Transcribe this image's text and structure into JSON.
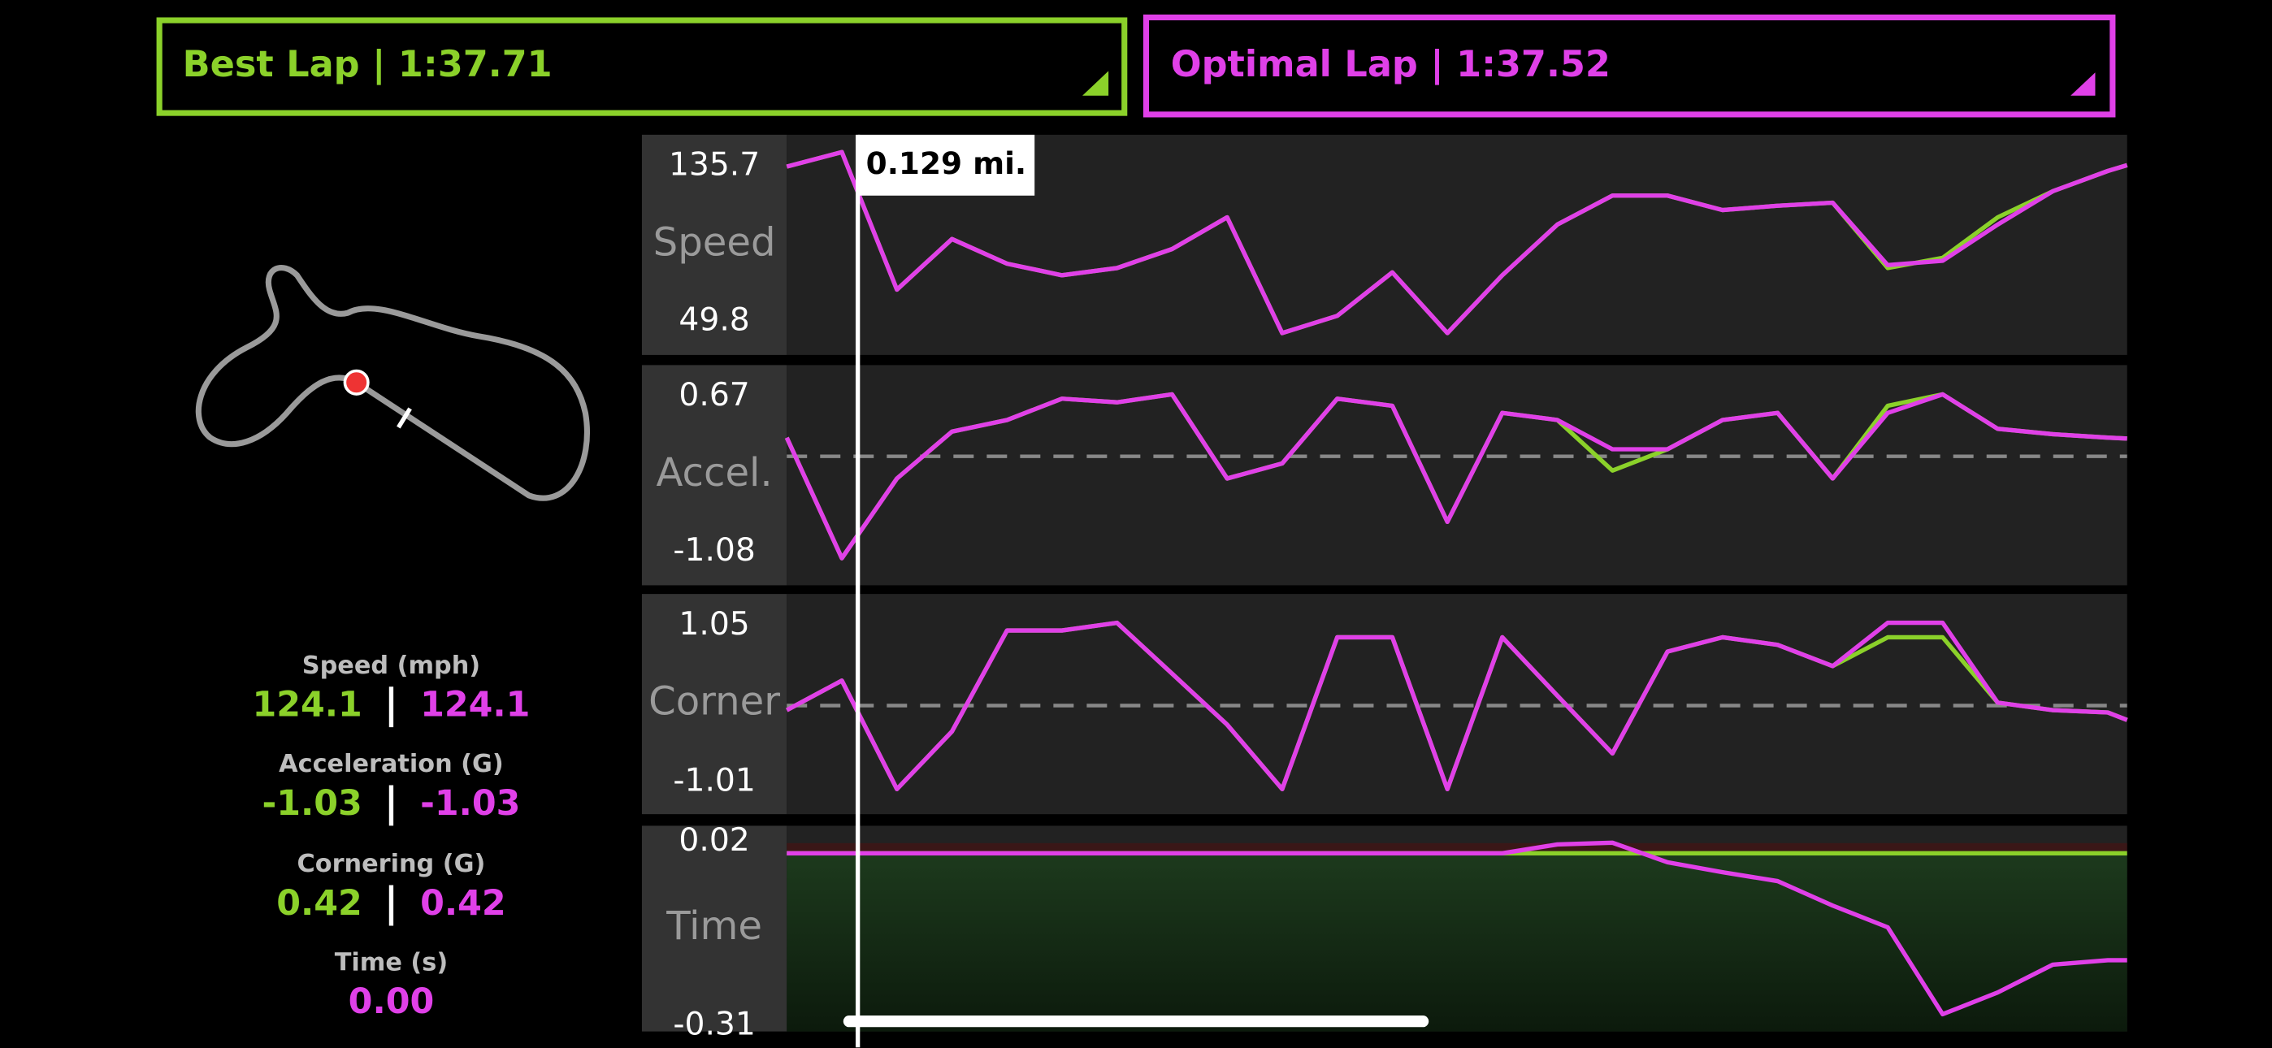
{
  "header": {
    "best_lap": "Best Lap | 1:37.71",
    "optimal_lap": "Optimal Lap | 1:37.52"
  },
  "stats": [
    {
      "label": "Speed (mph)",
      "best": "124.1",
      "optimal": "124.1"
    },
    {
      "label": "Acceleration (G)",
      "best": "-1.03",
      "optimal": "-1.03"
    },
    {
      "label": "Cornering (G)",
      "best": "0.42",
      "optimal": "0.42"
    },
    {
      "label": "Time (s)",
      "optimal": "0.00"
    }
  ],
  "cursor": {
    "value": 0.129,
    "label": "0.129 mi."
  },
  "chart_data": [
    {
      "type": "line",
      "ylabel": "Speed",
      "xlim": [
        0,
        2.435
      ],
      "ylim": [
        31.3,
        153.4
      ],
      "yticks": [
        49.8,
        135.7
      ],
      "zero_line": false,
      "x": [
        0,
        0.1,
        0.2,
        0.3,
        0.4,
        0.5,
        0.6,
        0.7,
        0.8,
        0.9,
        1.0,
        1.1,
        1.2,
        1.3,
        1.4,
        1.5,
        1.6,
        1.7,
        1.8,
        1.9,
        2.0,
        2.1,
        2.2,
        2.3,
        2.4,
        2.435
      ],
      "series": [
        {
          "color": "#8bd12a",
          "values": [
            135.7,
            143.8,
            67.5,
            95.6,
            81.9,
            75.5,
            79.5,
            90.0,
            107.6,
            43.4,
            53.0,
            77.1,
            43.4,
            75.5,
            103.6,
            119.7,
            119.7,
            111.6,
            114.0,
            115.7,
            79.5,
            85.1,
            107.6,
            122.1,
            133.3,
            136.5
          ]
        },
        {
          "color": "#e040e8",
          "values": [
            135.7,
            143.8,
            67.5,
            95.6,
            81.9,
            75.5,
            79.5,
            90.0,
            107.6,
            43.4,
            53.0,
            77.1,
            43.4,
            75.5,
            103.6,
            119.7,
            119.7,
            111.6,
            114.0,
            115.7,
            81.1,
            83.5,
            103.6,
            122.1,
            133.3,
            136.5
          ]
        }
      ]
    },
    {
      "type": "line",
      "ylabel": "Accel.",
      "xlim": [
        0,
        2.435
      ],
      "ylim": [
        -1.456,
        1.03
      ],
      "yticks": [
        -1.08,
        0.67
      ],
      "zero_line": true,
      "x": [
        0,
        0.1,
        0.2,
        0.3,
        0.4,
        0.5,
        0.6,
        0.7,
        0.8,
        0.9,
        1.0,
        1.1,
        1.2,
        1.3,
        1.4,
        1.5,
        1.6,
        1.7,
        1.8,
        1.9,
        2.0,
        2.1,
        2.2,
        2.3,
        2.4,
        2.435
      ],
      "series": [
        {
          "color": "#8bd12a",
          "values": [
            0.21,
            -1.15,
            -0.25,
            0.28,
            0.41,
            0.65,
            0.61,
            0.7,
            -0.25,
            -0.08,
            0.65,
            0.57,
            -0.74,
            0.49,
            0.41,
            -0.16,
            0.08,
            0.41,
            0.49,
            -0.25,
            0.57,
            0.7,
            0.31,
            0.25,
            0.21,
            0.2
          ]
        },
        {
          "color": "#e040e8",
          "values": [
            0.21,
            -1.15,
            -0.25,
            0.28,
            0.41,
            0.65,
            0.61,
            0.7,
            -0.25,
            -0.08,
            0.65,
            0.57,
            -0.74,
            0.49,
            0.41,
            0.08,
            0.08,
            0.41,
            0.49,
            -0.25,
            0.49,
            0.7,
            0.31,
            0.25,
            0.21,
            0.2
          ]
        }
      ]
    },
    {
      "type": "line",
      "ylabel": "Corner",
      "xlim": [
        0,
        2.435
      ],
      "ylim": [
        -1.43,
        1.47
      ],
      "yticks": [
        -1.01,
        1.05
      ],
      "zero_line": true,
      "x": [
        0,
        0.1,
        0.2,
        0.3,
        0.4,
        0.5,
        0.6,
        0.7,
        0.8,
        0.9,
        1.0,
        1.1,
        1.2,
        1.3,
        1.4,
        1.5,
        1.6,
        1.7,
        1.8,
        1.9,
        2.0,
        2.1,
        2.2,
        2.3,
        2.4,
        2.435
      ],
      "series": [
        {
          "color": "#8bd12a",
          "values": [
            -0.06,
            0.33,
            -1.1,
            -0.34,
            0.99,
            0.99,
            1.09,
            0.42,
            -0.25,
            -1.1,
            0.9,
            0.9,
            -1.1,
            0.9,
            0.13,
            -0.63,
            0.71,
            0.9,
            0.8,
            0.52,
            0.9,
            0.9,
            0.04,
            -0.06,
            -0.09,
            -0.19
          ]
        },
        {
          "color": "#e040e8",
          "values": [
            -0.06,
            0.33,
            -1.1,
            -0.34,
            0.99,
            0.99,
            1.09,
            0.42,
            -0.25,
            -1.1,
            0.9,
            0.9,
            -1.1,
            0.9,
            0.13,
            -0.63,
            0.71,
            0.9,
            0.8,
            0.52,
            1.09,
            1.09,
            0.04,
            -0.06,
            -0.09,
            -0.19
          ]
        }
      ]
    },
    {
      "type": "line",
      "ylabel": "Time",
      "xlim": [
        0,
        2.435
      ],
      "ylim": [
        -0.32,
        0.0495
      ],
      "yticks": [
        -0.31,
        0.02
      ],
      "zero_line": false,
      "x": [
        0,
        0.1,
        0.2,
        0.3,
        0.4,
        0.5,
        0.6,
        0.7,
        0.8,
        0.9,
        1.0,
        1.1,
        1.2,
        1.3,
        1.4,
        1.5,
        1.6,
        1.7,
        1.8,
        1.9,
        2.0,
        2.1,
        2.2,
        2.3,
        2.4,
        2.435
      ],
      "series": [
        {
          "color": "#8bd12a",
          "values": [
            0,
            0,
            0,
            0,
            0,
            0,
            0,
            0,
            0,
            0,
            0,
            0,
            0,
            0,
            0,
            0,
            0,
            0,
            0,
            0,
            0,
            0,
            0,
            0,
            0,
            0
          ]
        },
        {
          "color": "#e040e8",
          "values": [
            0,
            0,
            0,
            0,
            0,
            0,
            0,
            0,
            0,
            0,
            0,
            0,
            0,
            0,
            0.016,
            0.019,
            -0.016,
            -0.034,
            -0.05,
            -0.094,
            -0.133,
            -0.289,
            -0.25,
            -0.2,
            -0.192,
            -0.192
          ]
        }
      ]
    }
  ]
}
